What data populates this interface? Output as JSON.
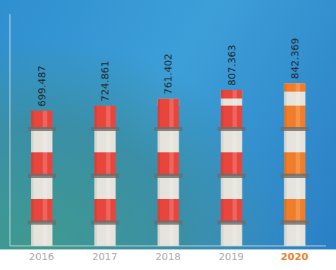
{
  "chart_data": {
    "type": "bar",
    "categories": [
      "2016",
      "2017",
      "2018",
      "2019",
      "2020"
    ],
    "values": [
      699.487,
      724.861,
      761.402,
      807.363,
      842.369
    ],
    "colors": [
      "#e8453c",
      "#e8453c",
      "#e8453c",
      "#e8453c",
      "#f07d2a"
    ],
    "ylim": [
      0,
      1200
    ],
    "data_labels": true,
    "tick_labels": "x",
    "grid": false
  }
}
